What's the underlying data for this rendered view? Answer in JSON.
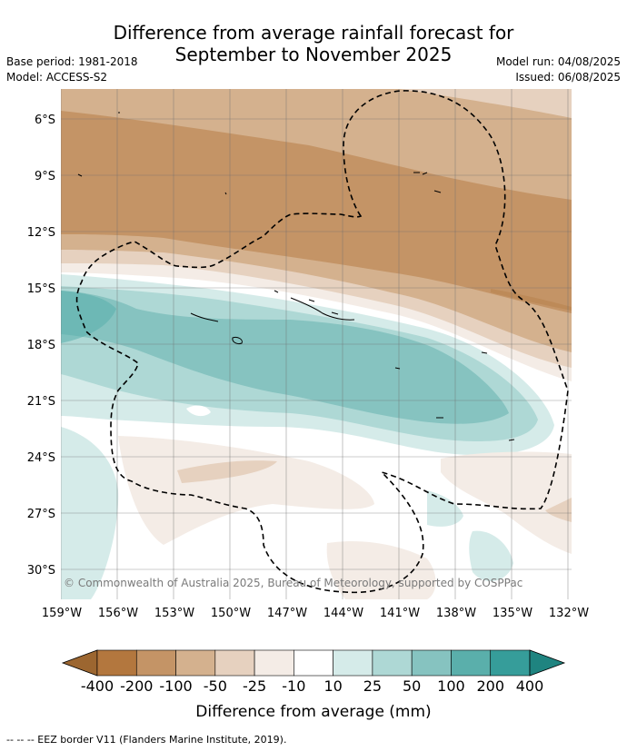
{
  "header": {
    "title_line1": "Difference from average rainfall forecast for",
    "title_line2": "September to November 2025",
    "base_period": "Base period: 1981-2018",
    "model": "Model: ACCESS-S2",
    "model_run": "Model run: 04/08/2025",
    "issued": "Issued: 06/08/2025"
  },
  "map": {
    "copyright": "© Commonwealth of Australia 2025, Bureau of Meteorology, supported by COSPPac",
    "lat_labels": [
      "6°S",
      "9°S",
      "12°S",
      "15°S",
      "18°S",
      "21°S",
      "24°S",
      "27°S",
      "30°S"
    ],
    "lon_labels": [
      "159°W",
      "156°W",
      "153°W",
      "150°W",
      "147°W",
      "144°W",
      "141°W",
      "138°W",
      "135°W",
      "132°W"
    ]
  },
  "legend": {
    "title": "Difference from average (mm)",
    "tick_labels": [
      "-400",
      "-200",
      "-100",
      "-50",
      "-25",
      "-10",
      "10",
      "25",
      "50",
      "100",
      "200",
      "400"
    ],
    "colors": [
      "#9c6630",
      "#b3773e",
      "#c49466",
      "#d4b18e",
      "#e6d1bf",
      "#f4ece6",
      "#ffffff",
      "#d5ebe9",
      "#aed8d5",
      "#86c3c0",
      "#5aafab",
      "#369d9a",
      "#1f8480"
    ]
  },
  "footer": {
    "eez_note": "-- --  -- EEZ border V11 (Flanders Marine Institute, 2019)."
  }
}
